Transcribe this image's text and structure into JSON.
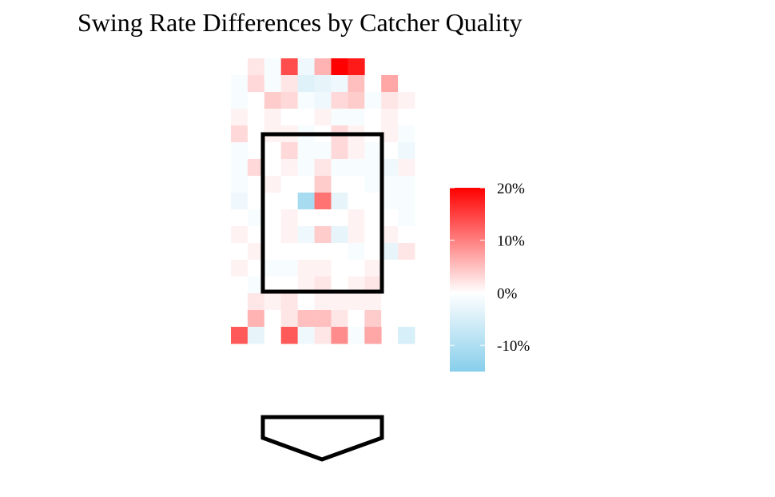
{
  "chart_data": {
    "type": "heatmap",
    "title": "Swing Rate Differences by Catcher Quality",
    "xlabel": "",
    "ylabel": "",
    "value_unit": "percentage points",
    "rows": 17,
    "cols": 11,
    "grid": false,
    "legend": "right",
    "colorbar": {
      "min": -15,
      "max": 20,
      "ticks": [
        20,
        10,
        0,
        -10
      ],
      "tick_labels": [
        "20%",
        "10%",
        "0%",
        "-10%"
      ],
      "low_color": "#87CEEB",
      "mid_color": "#FFFFFF",
      "high_color": "#FF0000"
    },
    "values": [
      [
        null,
        2,
        -1,
        14,
        -2,
        6,
        20,
        18,
        null,
        null,
        null
      ],
      [
        -1,
        3,
        -1,
        2,
        -4,
        -3,
        -2,
        5,
        0,
        7,
        0
      ],
      [
        -1,
        0,
        4,
        3,
        -1,
        -2,
        3,
        4,
        -1,
        2,
        1
      ],
      [
        1,
        0,
        1,
        0,
        0,
        1,
        -1,
        -1,
        0,
        1,
        0
      ],
      [
        3,
        0,
        1,
        1,
        -1,
        0,
        3,
        1,
        0,
        1,
        -1
      ],
      [
        -1,
        0,
        0,
        3,
        -1,
        -1,
        3,
        1,
        -1,
        0,
        -2
      ],
      [
        -1,
        3,
        0,
        1,
        -1,
        2,
        -1,
        -1,
        -1,
        -2,
        1
      ],
      [
        -1,
        0,
        1,
        0,
        0,
        4,
        0,
        0,
        -1,
        -1,
        -1
      ],
      [
        -2,
        0,
        0,
        0,
        -11,
        11,
        -3,
        0,
        0,
        -1,
        -1
      ],
      [
        0,
        -1,
        0,
        1,
        0,
        0,
        0,
        1,
        0,
        0,
        -1
      ],
      [
        1,
        0,
        0,
        1,
        -2,
        4,
        -3,
        1,
        0,
        1,
        0
      ],
      [
        0,
        1,
        0,
        0,
        0,
        0,
        0,
        -1,
        0,
        -3,
        2
      ],
      [
        1,
        0,
        -1,
        -1,
        1,
        1,
        0,
        0,
        1,
        0,
        0
      ],
      [
        0,
        -1,
        0,
        0,
        1,
        2,
        0,
        1,
        2,
        0,
        0
      ],
      [
        0,
        2,
        1,
        2,
        0,
        1,
        1,
        1,
        1,
        0,
        0
      ],
      [
        0,
        6,
        0,
        2,
        5,
        5,
        2,
        0,
        4,
        0,
        0
      ],
      [
        13,
        -3,
        0,
        13,
        -2,
        2,
        9,
        -1,
        7,
        null,
        -5
      ]
    ]
  }
}
